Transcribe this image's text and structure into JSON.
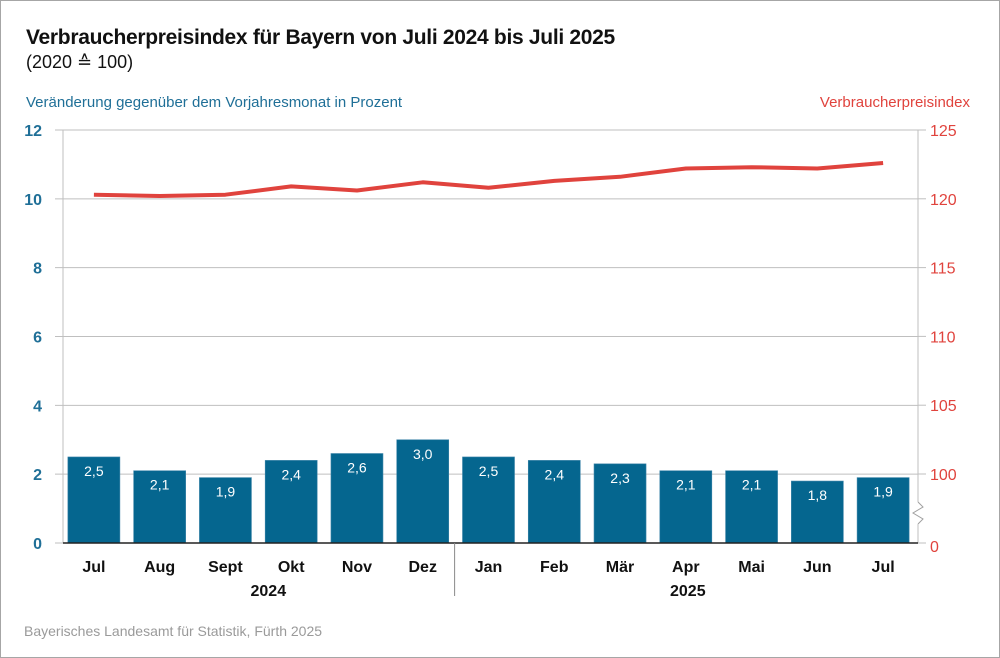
{
  "chart_data": {
    "type": "bar",
    "title": "Verbraucherpreisindex für Bayern von Juli 2024 bis Juli 2025",
    "subtitle": "(2020 ≙ 100)",
    "ylabel_left": "Veränderung gegenüber dem Vorjahresmonat in Prozent",
    "ylabel_right": "Verbraucherpreisindex",
    "categories": [
      "Jul",
      "Aug",
      "Sept",
      "Okt",
      "Nov",
      "Dez",
      "Jan",
      "Feb",
      "Mär",
      "Apr",
      "Mai",
      "Jun",
      "Jul"
    ],
    "year_groups": [
      {
        "label": "2024",
        "count": 6
      },
      {
        "label": "2025",
        "count": 7
      }
    ],
    "series": [
      {
        "name": "Veränderung gegenüber dem Vorjahresmonat in Prozent",
        "type": "bar",
        "axis": "left",
        "color": "#05668f",
        "values": [
          2.5,
          2.1,
          1.9,
          2.4,
          2.6,
          3.0,
          2.5,
          2.4,
          2.3,
          2.1,
          2.1,
          1.8,
          1.9
        ],
        "labels": [
          "2,5",
          "2,1",
          "1,9",
          "2,4",
          "2,6",
          "3,0",
          "2,5",
          "2,4",
          "2,3",
          "2,1",
          "2,1",
          "1,8",
          "1,9"
        ]
      },
      {
        "name": "Verbraucherpreisindex",
        "type": "line",
        "axis": "right",
        "color": "#e0433d",
        "values": [
          120.3,
          120.2,
          120.3,
          120.9,
          120.6,
          121.2,
          120.8,
          121.3,
          121.6,
          122.2,
          122.3,
          122.2,
          122.6
        ]
      }
    ],
    "y_left": {
      "ylim": [
        0,
        12
      ],
      "ticks": [
        "0",
        "2",
        "4",
        "6",
        "8",
        "10",
        "12"
      ]
    },
    "y_right": {
      "ticks": [
        "0",
        "100",
        "105",
        "110",
        "115",
        "120",
        "125"
      ],
      "axis_break": "between 0 and 100",
      "ylim": [
        100,
        125
      ]
    },
    "grid": true,
    "source": "Bayerisches Landesamt für Statistik, Fürth 2025"
  }
}
